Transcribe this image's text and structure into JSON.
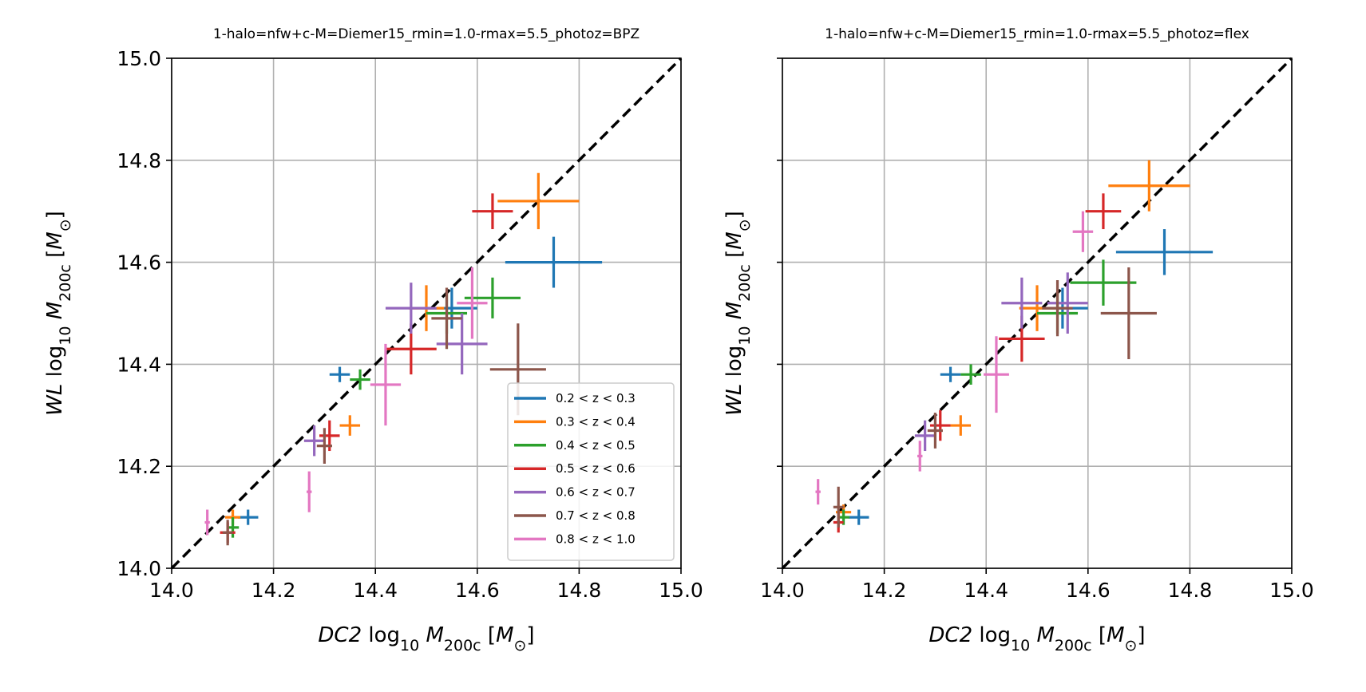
{
  "chart_data": [
    {
      "type": "scatter",
      "title": "1-halo=nfw+c-M=Diemer15_rmin=1.0-rmax=5.5_photoz=BPZ",
      "xlabel": "DC2 log10 M200c [M⊙]",
      "ylabel": "WL log10 M200c [M⊙]",
      "xlim": [
        14.0,
        15.0
      ],
      "ylim": [
        14.0,
        15.0
      ],
      "xticks": [
        "14.0",
        "14.2",
        "14.4",
        "14.6",
        "14.8",
        "15.0"
      ],
      "yticks": [
        "14.0",
        "14.2",
        "14.4",
        "14.6",
        "14.8",
        "15.0"
      ],
      "grid": true,
      "reference_line": "y = x (black dashed)",
      "legend_position": "lower-right",
      "series": [
        {
          "name": "0.2 < z < 0.3",
          "color": "#1f77b4",
          "points": [
            {
              "x": 14.15,
              "y": 14.1,
              "xerr": 0.02,
              "yerr": 0.015
            },
            {
              "x": 14.33,
              "y": 14.38,
              "xerr": 0.02,
              "yerr": 0.015
            },
            {
              "x": 14.55,
              "y": 14.51,
              "xerr": 0.05,
              "yerr": 0.04
            },
            {
              "x": 14.75,
              "y": 14.6,
              "xerr": 0.095,
              "yerr": 0.05
            }
          ]
        },
        {
          "name": "0.3 < z < 0.4",
          "color": "#ff7f0e",
          "points": [
            {
              "x": 14.12,
              "y": 14.1,
              "xerr": 0.015,
              "yerr": 0.015
            },
            {
              "x": 14.35,
              "y": 14.28,
              "xerr": 0.02,
              "yerr": 0.02
            },
            {
              "x": 14.5,
              "y": 14.51,
              "xerr": 0.035,
              "yerr": 0.045
            },
            {
              "x": 14.72,
              "y": 14.72,
              "xerr": 0.08,
              "yerr": 0.055
            }
          ]
        },
        {
          "name": "0.4 < z < 0.5",
          "color": "#2ca02c",
          "points": [
            {
              "x": 14.12,
              "y": 14.08,
              "xerr": 0.012,
              "yerr": 0.02
            },
            {
              "x": 14.37,
              "y": 14.37,
              "xerr": 0.02,
              "yerr": 0.02
            },
            {
              "x": 14.54,
              "y": 14.5,
              "xerr": 0.04,
              "yerr": 0.04
            },
            {
              "x": 14.63,
              "y": 14.53,
              "xerr": 0.055,
              "yerr": 0.04
            }
          ]
        },
        {
          "name": "0.5 < z < 0.6",
          "color": "#d62728",
          "points": [
            {
              "x": 14.11,
              "y": 14.07,
              "xerr": 0.015,
              "yerr": 0.02
            },
            {
              "x": 14.31,
              "y": 14.26,
              "xerr": 0.02,
              "yerr": 0.03
            },
            {
              "x": 14.47,
              "y": 14.43,
              "xerr": 0.05,
              "yerr": 0.05
            },
            {
              "x": 14.63,
              "y": 14.7,
              "xerr": 0.04,
              "yerr": 0.035
            }
          ]
        },
        {
          "name": "0.6 < z < 0.7",
          "color": "#9467bd",
          "points": [
            {
              "x": 14.28,
              "y": 14.25,
              "xerr": 0.02,
              "yerr": 0.03
            },
            {
              "x": 14.47,
              "y": 14.51,
              "xerr": 0.05,
              "yerr": 0.05
            },
            {
              "x": 14.57,
              "y": 14.44,
              "xerr": 0.05,
              "yerr": 0.06
            }
          ]
        },
        {
          "name": "0.7 < z < 0.8",
          "color": "#8c564b",
          "points": [
            {
              "x": 14.11,
              "y": 14.07,
              "xerr": 0.01,
              "yerr": 0.025
            },
            {
              "x": 14.3,
              "y": 14.24,
              "xerr": 0.015,
              "yerr": 0.035
            },
            {
              "x": 14.54,
              "y": 14.49,
              "xerr": 0.03,
              "yerr": 0.06
            },
            {
              "x": 14.68,
              "y": 14.39,
              "xerr": 0.055,
              "yerr": 0.09
            }
          ]
        },
        {
          "name": "0.8 < z < 1.0",
          "color": "#e377c2",
          "points": [
            {
              "x": 14.07,
              "y": 14.09,
              "xerr": 0.005,
              "yerr": 0.025
            },
            {
              "x": 14.27,
              "y": 14.15,
              "xerr": 0.005,
              "yerr": 0.04
            },
            {
              "x": 14.42,
              "y": 14.36,
              "xerr": 0.03,
              "yerr": 0.08
            },
            {
              "x": 14.59,
              "y": 14.52,
              "xerr": 0.03,
              "yerr": 0.07
            }
          ]
        }
      ]
    },
    {
      "type": "scatter",
      "title": "1-halo=nfw+c-M=Diemer15_rmin=1.0-rmax=5.5_photoz=flex",
      "xlabel": "DC2 log10 M200c [M⊙]",
      "ylabel": "WL log10 M200c [M⊙]",
      "xlim": [
        14.0,
        15.0
      ],
      "ylim": [
        14.0,
        15.0
      ],
      "xticks": [
        "14.0",
        "14.2",
        "14.4",
        "14.6",
        "14.8",
        "15.0"
      ],
      "yticks": [],
      "grid": true,
      "reference_line": "y = x (black dashed)",
      "series": [
        {
          "name": "0.2 < z < 0.3",
          "color": "#1f77b4",
          "points": [
            {
              "x": 14.15,
              "y": 14.1,
              "xerr": 0.02,
              "yerr": 0.015
            },
            {
              "x": 14.33,
              "y": 14.38,
              "xerr": 0.02,
              "yerr": 0.015
            },
            {
              "x": 14.55,
              "y": 14.51,
              "xerr": 0.05,
              "yerr": 0.04
            },
            {
              "x": 14.75,
              "y": 14.62,
              "xerr": 0.095,
              "yerr": 0.045
            }
          ]
        },
        {
          "name": "0.3 < z < 0.4",
          "color": "#ff7f0e",
          "points": [
            {
              "x": 14.12,
              "y": 14.11,
              "xerr": 0.015,
              "yerr": 0.015
            },
            {
              "x": 14.35,
              "y": 14.28,
              "xerr": 0.02,
              "yerr": 0.02
            },
            {
              "x": 14.5,
              "y": 14.51,
              "xerr": 0.035,
              "yerr": 0.045
            },
            {
              "x": 14.72,
              "y": 14.75,
              "xerr": 0.08,
              "yerr": 0.05
            }
          ]
        },
        {
          "name": "0.4 < z < 0.5",
          "color": "#2ca02c",
          "points": [
            {
              "x": 14.12,
              "y": 14.1,
              "xerr": 0.012,
              "yerr": 0.015
            },
            {
              "x": 14.37,
              "y": 14.38,
              "xerr": 0.02,
              "yerr": 0.02
            },
            {
              "x": 14.54,
              "y": 14.5,
              "xerr": 0.04,
              "yerr": 0.04
            },
            {
              "x": 14.63,
              "y": 14.56,
              "xerr": 0.065,
              "yerr": 0.045
            }
          ]
        },
        {
          "name": "0.5 < z < 0.6",
          "color": "#d62728",
          "points": [
            {
              "x": 14.11,
              "y": 14.09,
              "xerr": 0.01,
              "yerr": 0.02
            },
            {
              "x": 14.31,
              "y": 14.28,
              "xerr": 0.02,
              "yerr": 0.03
            },
            {
              "x": 14.47,
              "y": 14.45,
              "xerr": 0.045,
              "yerr": 0.045
            },
            {
              "x": 14.63,
              "y": 14.7,
              "xerr": 0.035,
              "yerr": 0.035
            }
          ]
        },
        {
          "name": "0.6 < z < 0.7",
          "color": "#9467bd",
          "points": [
            {
              "x": 14.28,
              "y": 14.26,
              "xerr": 0.02,
              "yerr": 0.03
            },
            {
              "x": 14.47,
              "y": 14.52,
              "xerr": 0.04,
              "yerr": 0.05
            },
            {
              "x": 14.56,
              "y": 14.52,
              "xerr": 0.04,
              "yerr": 0.06
            }
          ]
        },
        {
          "name": "0.7 < z < 0.8",
          "color": "#8c564b",
          "points": [
            {
              "x": 14.11,
              "y": 14.12,
              "xerr": 0.01,
              "yerr": 0.04
            },
            {
              "x": 14.3,
              "y": 14.27,
              "xerr": 0.015,
              "yerr": 0.035
            },
            {
              "x": 14.54,
              "y": 14.51,
              "xerr": 0.03,
              "yerr": 0.055
            },
            {
              "x": 14.68,
              "y": 14.5,
              "xerr": 0.055,
              "yerr": 0.09
            }
          ]
        },
        {
          "name": "0.8 < z < 1.0",
          "color": "#e377c2",
          "points": [
            {
              "x": 14.07,
              "y": 14.15,
              "xerr": 0.005,
              "yerr": 0.025
            },
            {
              "x": 14.27,
              "y": 14.22,
              "xerr": 0.005,
              "yerr": 0.03
            },
            {
              "x": 14.42,
              "y": 14.38,
              "xerr": 0.025,
              "yerr": 0.075
            },
            {
              "x": 14.59,
              "y": 14.66,
              "xerr": 0.02,
              "yerr": 0.04
            }
          ]
        }
      ]
    }
  ]
}
